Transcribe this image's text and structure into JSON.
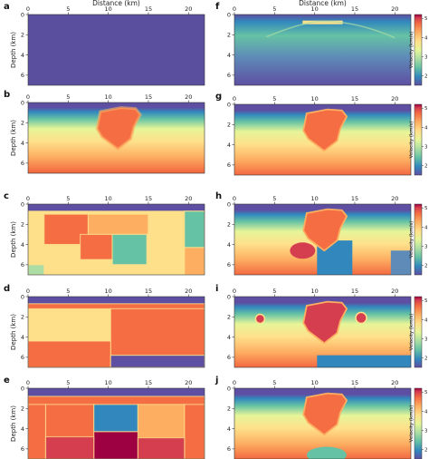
{
  "figure": {
    "axis_label_x": "Distance (km)",
    "axis_label_y": "Depth (km)",
    "colorbar_label": "Velocity (km/s)",
    "x_ticks": [
      "0",
      "5",
      "10",
      "15",
      "20"
    ],
    "y_ticks": [
      "0",
      "2",
      "4",
      "6"
    ],
    "colorbar_ticks": [
      "2",
      "3",
      "4",
      "5"
    ]
  },
  "chart_data": [
    {
      "panel": "a",
      "type": "heatmap",
      "content": "smooth initial model",
      "xlabel": "Distance (km)",
      "ylabel": "Depth (km)",
      "xlim": [
        0,
        22
      ],
      "ylim": [
        7,
        0
      ]
    },
    {
      "panel": "b",
      "type": "heatmap",
      "content": "velocity model with salt body",
      "xlabel": "",
      "ylabel": "Depth (km)",
      "xlim": [
        0,
        22
      ],
      "ylim": [
        7,
        0
      ]
    },
    {
      "panel": "c",
      "type": "heatmap",
      "content": "blocky model",
      "xlabel": "",
      "ylabel": "Depth (km)",
      "xlim": [
        0,
        22
      ],
      "ylim": [
        7,
        0
      ]
    },
    {
      "panel": "d",
      "type": "heatmap",
      "content": "blocky model",
      "xlabel": "",
      "ylabel": "Depth (km)",
      "xlim": [
        0,
        22
      ],
      "ylim": [
        7,
        0
      ]
    },
    {
      "panel": "e",
      "type": "heatmap",
      "content": "blocky model",
      "xlabel": "",
      "ylabel": "Depth (km)",
      "xlim": [
        0,
        22
      ],
      "ylim": [
        7,
        0
      ]
    },
    {
      "panel": "f",
      "type": "heatmap",
      "content": "inverted velocity model",
      "xlabel": "Distance (km)",
      "ylabel": "",
      "xlim": [
        0,
        22
      ],
      "ylim": [
        7,
        0
      ],
      "colorbar": {
        "label": "Velocity (km/s)",
        "range": [
          1.5,
          5.2
        ],
        "ticks": [
          2,
          3,
          4,
          5
        ]
      }
    },
    {
      "panel": "g",
      "type": "heatmap",
      "content": "inverted velocity model",
      "xlabel": "",
      "ylabel": "",
      "xlim": [
        0,
        22
      ],
      "ylim": [
        7,
        0
      ],
      "colorbar": {
        "label": "Velocity (km/s)",
        "range": [
          1.5,
          5.2
        ],
        "ticks": [
          2,
          3,
          4,
          5
        ]
      }
    },
    {
      "panel": "h",
      "type": "heatmap",
      "content": "inverted velocity model",
      "xlabel": "",
      "ylabel": "",
      "xlim": [
        0,
        22
      ],
      "ylim": [
        7,
        0
      ],
      "colorbar": {
        "label": "Velocity (km/s)",
        "range": [
          1.5,
          5.2
        ],
        "ticks": [
          2,
          3,
          4,
          5
        ]
      }
    },
    {
      "panel": "i",
      "type": "heatmap",
      "content": "inverted velocity model",
      "xlabel": "",
      "ylabel": "",
      "xlim": [
        0,
        22
      ],
      "ylim": [
        7,
        0
      ],
      "colorbar": {
        "label": "Velocity (km/s)",
        "range": [
          1.5,
          5.2
        ],
        "ticks": [
          2,
          3,
          4,
          5
        ]
      }
    },
    {
      "panel": "j",
      "type": "heatmap",
      "content": "inverted velocity model",
      "xlabel": "",
      "ylabel": "",
      "xlim": [
        0,
        22
      ],
      "ylim": [
        7,
        0
      ],
      "colorbar": {
        "label": "Velocity (km/s)",
        "range": [
          1.5,
          5.2
        ],
        "ticks": [
          2,
          3,
          4,
          5
        ]
      }
    }
  ],
  "colors": {
    "background_low": "#5e4fa2",
    "colormap": [
      "#5e4fa2",
      "#3288bd",
      "#66c2a5",
      "#abdda4",
      "#e6f598",
      "#fee08b",
      "#fdae61",
      "#f46d43",
      "#d53e4f",
      "#9e0142"
    ]
  }
}
